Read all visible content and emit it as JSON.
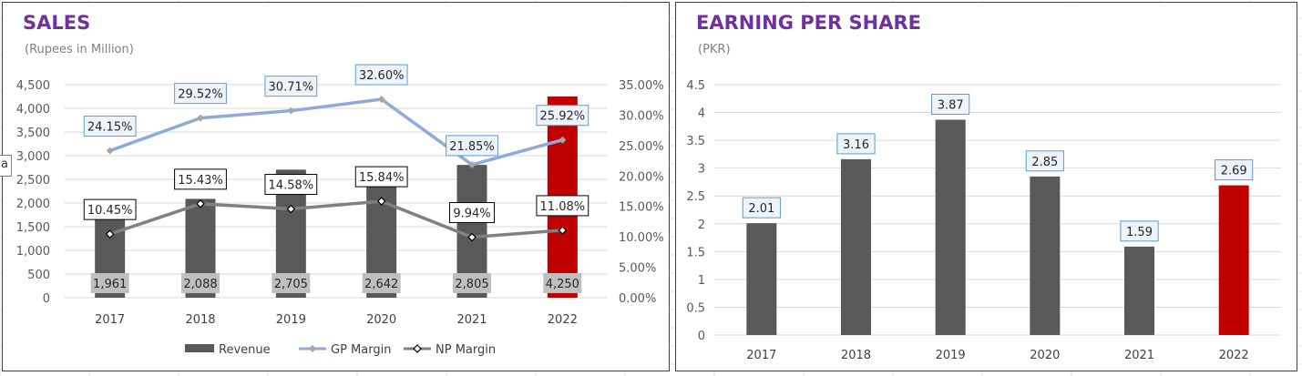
{
  "sales": {
    "title": "SALES",
    "subtitle": "(Rupees in Million)",
    "edge_fragment": "a"
  },
  "eps": {
    "title": "EARNING PER SHARE",
    "subtitle": "(PKR)"
  },
  "colors": {
    "title": "#7030a0",
    "bar": "#595959",
    "highlight_bar": "#c00000",
    "gp_line": "#8eaadb",
    "np_line": "#808080",
    "label_bg": "#bfbfbf",
    "callout_border": "#5b9bd5"
  },
  "chart_data": [
    {
      "type": "bar",
      "title": "SALES",
      "subtitle": "(Rupees in Million)",
      "categories": [
        "2017",
        "2018",
        "2019",
        "2020",
        "2021",
        "2022"
      ],
      "ylim": [
        0,
        4500
      ],
      "y_ticks": [
        "0",
        "500",
        "1,000",
        "1,500",
        "2,000",
        "2,500",
        "3,000",
        "3,500",
        "4,000",
        "4,500"
      ],
      "y2lim": [
        0,
        0.35
      ],
      "y2_ticks": [
        "0.00%",
        "5.00%",
        "10.00%",
        "15.00%",
        "20.00%",
        "25.00%",
        "30.00%",
        "35.00%"
      ],
      "grid": true,
      "legend_position": "bottom",
      "series": [
        {
          "name": "Revenue",
          "kind": "bar",
          "axis": "left",
          "values": [
            1961,
            2088,
            2705,
            2642,
            2805,
            4250
          ],
          "labels": [
            "1,961",
            "2,088",
            "2,705",
            "2,642",
            "2,805",
            "4,250"
          ]
        },
        {
          "name": "GP Margin",
          "kind": "line",
          "axis": "right",
          "values": [
            0.2415,
            0.2952,
            0.3071,
            0.326,
            0.2185,
            0.2592
          ],
          "labels": [
            "24.15%",
            "29.52%",
            "30.71%",
            "32.60%",
            "21.85%",
            "25.92%"
          ]
        },
        {
          "name": "NP Margin",
          "kind": "line",
          "axis": "right",
          "values": [
            0.1045,
            0.1543,
            0.1458,
            0.1584,
            0.0994,
            0.1108
          ],
          "labels": [
            "10.45%",
            "15.43%",
            "14.58%",
            "15.84%",
            "9.94%",
            "11.08%"
          ]
        }
      ]
    },
    {
      "type": "bar",
      "title": "EARNING PER SHARE",
      "subtitle": "(PKR)",
      "categories": [
        "2017",
        "2018",
        "2019",
        "2020",
        "2021",
        "2022"
      ],
      "values": [
        2.01,
        3.16,
        3.87,
        2.85,
        1.59,
        2.69
      ],
      "labels": [
        "2.01",
        "3.16",
        "3.87",
        "2.85",
        "1.59",
        "2.69"
      ],
      "ylim": [
        0,
        4.5
      ],
      "y_ticks": [
        "0",
        "0.5",
        "1",
        "1.5",
        "2",
        "2.5",
        "3",
        "3.5",
        "4",
        "4.5"
      ],
      "grid": true
    }
  ]
}
